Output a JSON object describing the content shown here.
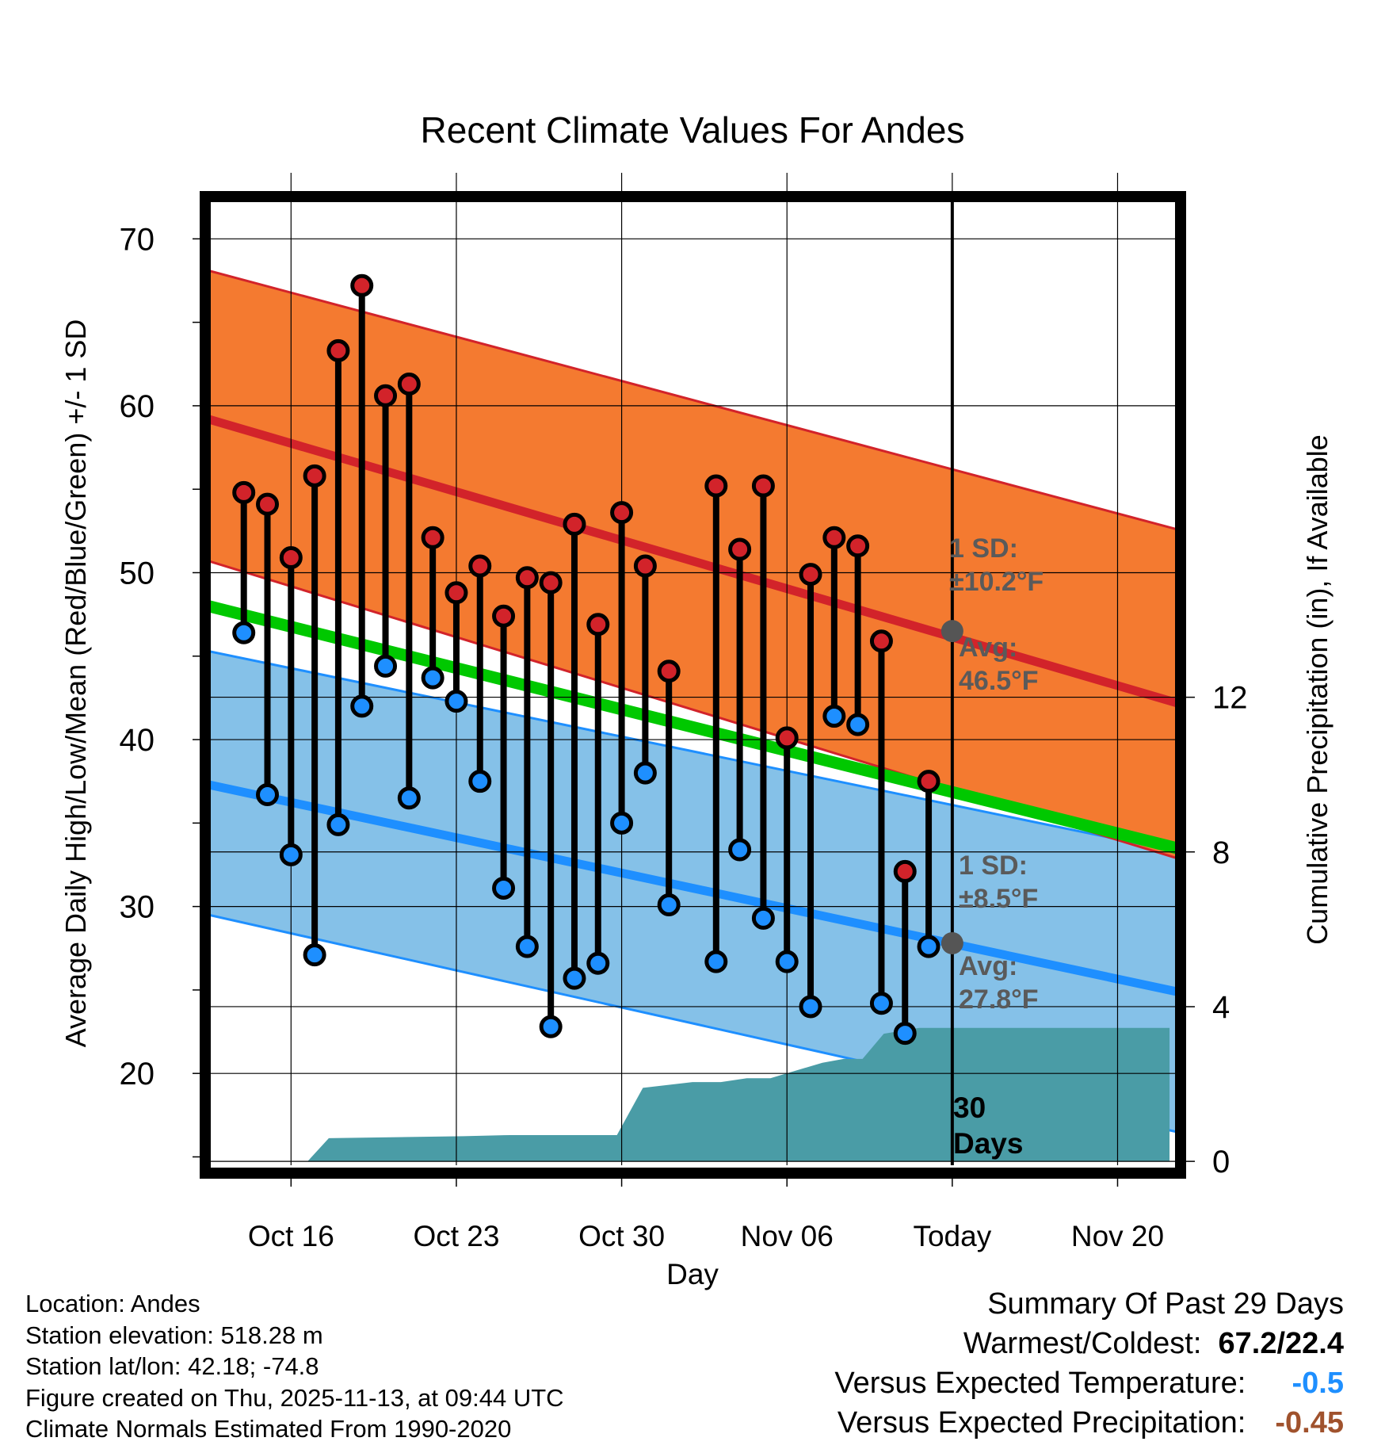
{
  "chart_data": {
    "type": "line",
    "title": "Recent Climate Values For Andes",
    "xlabel": "Day",
    "ylabel": "Average Daily High/Low/Mean (Red/Blue/Green) +/- 1 SD",
    "y2label": "Cumulative Precipitation (in), If Available",
    "ylim": [
      14.5,
      72.2
    ],
    "y2lim": [
      -0.1,
      24.8
    ],
    "xlim": [
      -3.5,
      37.5
    ],
    "yticks": [
      20,
      30,
      40,
      50,
      60,
      70
    ],
    "y2ticks": [
      0,
      4,
      8,
      12
    ],
    "xticks": [
      {
        "day": 0,
        "label": "Oct 16"
      },
      {
        "day": 7,
        "label": "Oct 23"
      },
      {
        "day": 14,
        "label": "Oct 30"
      },
      {
        "day": 21,
        "label": "Nov 06"
      },
      {
        "day": 28,
        "label": "Today"
      },
      {
        "day": 35,
        "label": "Nov 20"
      }
    ],
    "today_day": 28,
    "normals": {
      "high_avg": [
        59.2,
        42.2
      ],
      "high_upper": [
        68.1,
        52.6
      ],
      "high_lower": [
        50.7,
        32.9
      ],
      "low_avg": [
        37.3,
        24.9
      ],
      "low_upper": [
        45.3,
        33.3
      ],
      "low_lower": [
        29.5,
        16.5
      ],
      "mean_avg": [
        48.0,
        33.5
      ]
    },
    "observed": {
      "start_day": -2,
      "highs": [
        54.8,
        54.1,
        50.9,
        55.8,
        63.3,
        67.2,
        60.6,
        61.3,
        52.1,
        48.8,
        50.4,
        47.4,
        49.7,
        49.4,
        52.9,
        46.9,
        53.6,
        50.4,
        44.1,
        null,
        55.2,
        51.4,
        55.2,
        40.1,
        49.9,
        52.1,
        51.6,
        45.9,
        32.1,
        37.5
      ],
      "lows": [
        46.4,
        36.7,
        33.1,
        27.1,
        34.9,
        42.0,
        44.4,
        36.5,
        43.7,
        42.3,
        37.5,
        31.1,
        27.6,
        22.8,
        25.7,
        26.6,
        35.0,
        38.0,
        30.1,
        null,
        26.7,
        33.4,
        29.3,
        26.7,
        24.0,
        41.4,
        40.9,
        24.2,
        22.4,
        27.6
      ]
    },
    "precip": {
      "days": [
        -3.2,
        0.7,
        0.7,
        1.6,
        7.3,
        9.3,
        10.3,
        11.0,
        13.1,
        13.8,
        14.9,
        17.0,
        18.2,
        19.3,
        20.3,
        22.5,
        23.4,
        24.2,
        25.1,
        26.6,
        29.0,
        37.2
      ],
      "values": [
        0,
        0,
        0,
        0.6,
        0.65,
        0.68,
        0.68,
        0.68,
        0.68,
        0.68,
        1.9,
        2.05,
        2.05,
        2.15,
        2.15,
        2.55,
        2.65,
        2.65,
        3.3,
        3.45,
        3.45,
        3.45
      ]
    },
    "annotations": {
      "high_sd_label": "1 SD:",
      "high_sd_value": "±10.2°F",
      "high_avg_label": "Avg:",
      "high_avg_value": "46.5°F",
      "high_avg_today": 46.5,
      "low_sd_label": "1 SD:",
      "low_sd_value": "±8.5°F",
      "low_avg_label": "Avg:",
      "low_avg_value": "27.8°F",
      "low_avg_today": 27.8,
      "window_label_1": "30",
      "window_label_2": "Days"
    },
    "colors": {
      "high_band": "#f47a30",
      "high_line": "#d2232a",
      "low_band": "#85c1e8",
      "low_line": "#1e8fff",
      "mean_line": "#00c800",
      "precip": "#4a9ca6",
      "marker_high": "#d2232a",
      "marker_low": "#1e8fff",
      "annotation": "#5a5a5a"
    }
  },
  "footer": {
    "location": "Location: Andes",
    "elevation": "Station elevation: 518.28 m",
    "latlon": "Station lat/lon: 42.18; -74.8",
    "created": "Figure created on Thu, 2025-11-13, at 09:44 UTC",
    "normals": "Climate Normals Estimated From 1990-2020"
  },
  "summary": {
    "heading": "Summary Of Past 29 Days",
    "warmest_label": "Warmest/Coldest:",
    "warmest_value": "67.2/22.4",
    "temp_label": "Versus Expected Temperature:",
    "temp_value": "-0.5",
    "temp_color": "#1e8fff",
    "precip_label": "Versus Expected Precipitation:",
    "precip_value": "-0.45",
    "precip_color": "#a0522d"
  }
}
